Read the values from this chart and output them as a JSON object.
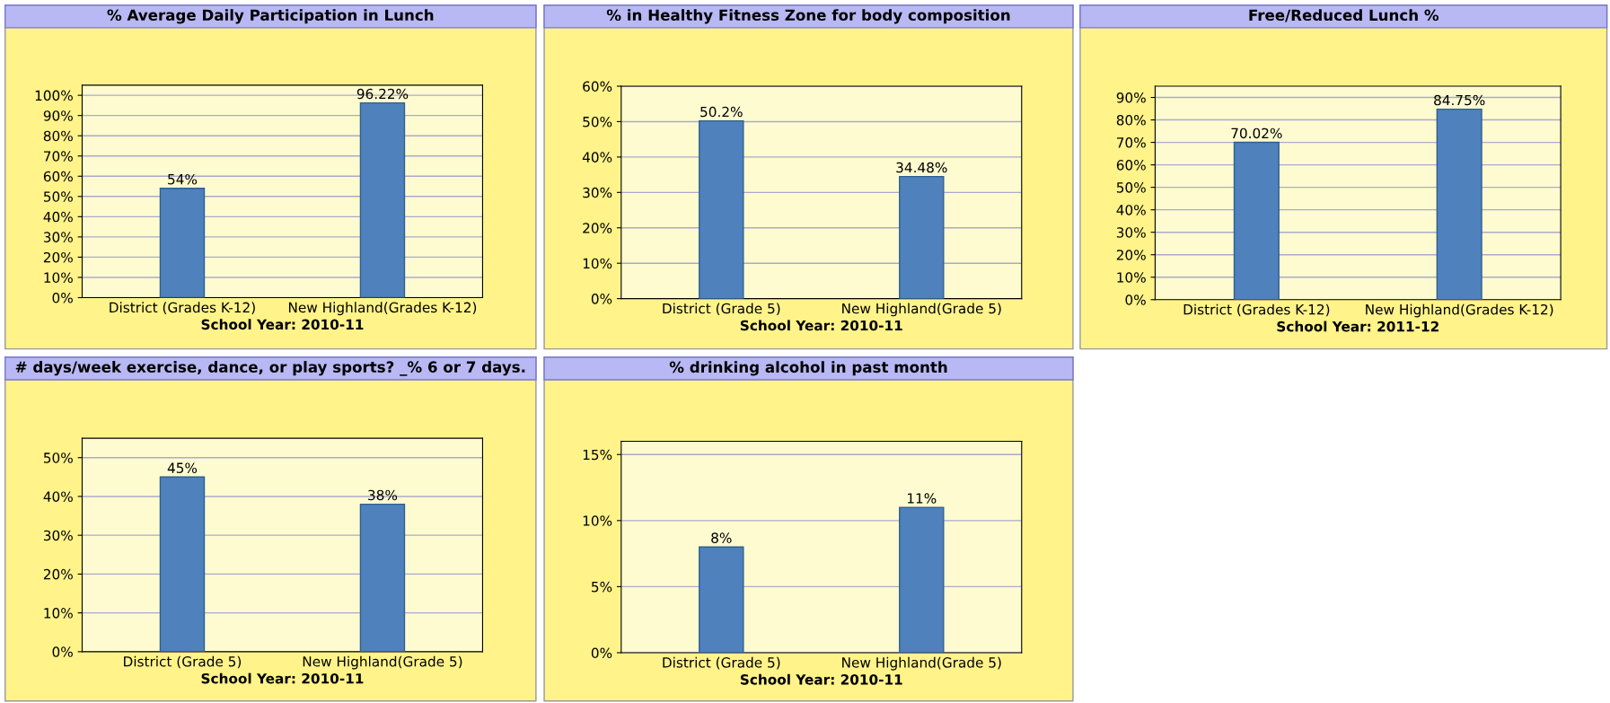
{
  "chart_data": [
    {
      "type": "bar",
      "title": "% Average Daily Participation in Lunch",
      "xlabel": "School Year: 2010-11",
      "categories": [
        "District (Grades K-12)",
        "New Highland(Grades K-12)"
      ],
      "values": [
        54,
        96.22
      ],
      "value_labels": [
        "54%",
        "96.22%"
      ],
      "color": "#4f81bd",
      "ylim": [
        0,
        105
      ],
      "yticks": [
        {
          "value": 0,
          "label": "0%"
        },
        {
          "value": 10,
          "label": "10%"
        },
        {
          "value": 20,
          "label": "20%"
        },
        {
          "value": 30,
          "label": "30%"
        },
        {
          "value": 40,
          "label": "40%"
        },
        {
          "value": 50,
          "label": "50%"
        },
        {
          "value": 60,
          "label": "60%"
        },
        {
          "value": 70,
          "label": "70%"
        },
        {
          "value": 80,
          "label": "80%"
        },
        {
          "value": 90,
          "label": "90%"
        },
        {
          "value": 100,
          "label": "100%"
        }
      ],
      "grid": "y"
    },
    {
      "type": "bar",
      "title": "% in Healthy Fitness Zone for body composition",
      "xlabel": "School Year: 2010-11",
      "categories": [
        "District (Grade 5)",
        "New Highland(Grade 5)"
      ],
      "values": [
        50.2,
        34.48
      ],
      "value_labels": [
        "50.2%",
        "34.48%"
      ],
      "color": "#4f81bd",
      "ylim": [
        0,
        60
      ],
      "yticks": [
        {
          "value": 0,
          "label": "0%"
        },
        {
          "value": 10,
          "label": "10%"
        },
        {
          "value": 20,
          "label": "20%"
        },
        {
          "value": 30,
          "label": "30%"
        },
        {
          "value": 40,
          "label": "40%"
        },
        {
          "value": 50,
          "label": "50%"
        },
        {
          "value": 60,
          "label": "60%"
        }
      ],
      "grid": "y"
    },
    {
      "type": "bar",
      "title": "Free/Reduced Lunch %",
      "xlabel": "School Year: 2011-12",
      "categories": [
        "District (Grades K-12)",
        "New Highland(Grades K-12)"
      ],
      "values": [
        70.02,
        84.75
      ],
      "value_labels": [
        "70.02%",
        "84.75%"
      ],
      "color": "#4f81bd",
      "ylim": [
        0,
        95
      ],
      "yticks": [
        {
          "value": 0,
          "label": "0%"
        },
        {
          "value": 10,
          "label": "10%"
        },
        {
          "value": 20,
          "label": "20%"
        },
        {
          "value": 30,
          "label": "30%"
        },
        {
          "value": 40,
          "label": "40%"
        },
        {
          "value": 50,
          "label": "50%"
        },
        {
          "value": 60,
          "label": "60%"
        },
        {
          "value": 70,
          "label": "70%"
        },
        {
          "value": 80,
          "label": "80%"
        },
        {
          "value": 90,
          "label": "90%"
        }
      ],
      "grid": "y"
    },
    {
      "type": "bar",
      "title": "# days/week exercise, dance, or play sports? _% 6 or 7 days.",
      "xlabel": "School Year: 2010-11",
      "categories": [
        "District (Grade 5)",
        "New Highland(Grade 5)"
      ],
      "values": [
        45,
        38
      ],
      "value_labels": [
        "45%",
        "38%"
      ],
      "color": "#4f81bd",
      "ylim": [
        0,
        55
      ],
      "yticks": [
        {
          "value": 0,
          "label": "0%"
        },
        {
          "value": 10,
          "label": "10%"
        },
        {
          "value": 20,
          "label": "20%"
        },
        {
          "value": 30,
          "label": "30%"
        },
        {
          "value": 40,
          "label": "40%"
        },
        {
          "value": 50,
          "label": "50%"
        }
      ],
      "grid": "y"
    },
    {
      "type": "bar",
      "title": "% drinking alcohol in past month",
      "xlabel": "School Year: 2010-11",
      "categories": [
        "District (Grade 5)",
        "New Highland(Grade 5)"
      ],
      "values": [
        8,
        11
      ],
      "value_labels": [
        "8%",
        "11%"
      ],
      "color": "#4f81bd",
      "ylim": [
        0,
        16
      ],
      "yticks": [
        {
          "value": 0,
          "label": "0%"
        },
        {
          "value": 5,
          "label": "5%"
        },
        {
          "value": 10,
          "label": "10%"
        },
        {
          "value": 15,
          "label": "15%"
        }
      ],
      "grid": "y"
    }
  ]
}
